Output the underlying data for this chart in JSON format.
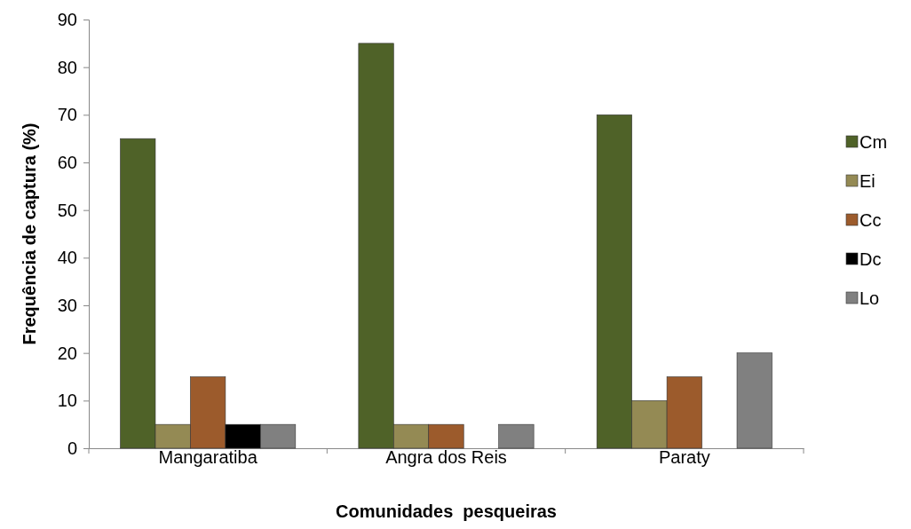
{
  "chart_data": {
    "type": "bar",
    "xlabel": "Comunidades  pesqueiras",
    "ylabel": "Frequência de captura (%)",
    "categories": [
      "Mangaratiba",
      "Angra dos Reis",
      "Paraty"
    ],
    "series": [
      {
        "name": "Cm",
        "color": "#4f6228",
        "values": [
          65,
          85,
          70
        ]
      },
      {
        "name": "Ei",
        "color": "#948a54",
        "values": [
          5,
          5,
          10
        ]
      },
      {
        "name": "Cc",
        "color": "#9c5b2c",
        "values": [
          15,
          5,
          15
        ]
      },
      {
        "name": "Dc",
        "color": "#000000",
        "values": [
          5,
          0,
          0
        ]
      },
      {
        "name": "Lo",
        "color": "#808080",
        "values": [
          5,
          5,
          20
        ]
      }
    ],
    "ylim": [
      0,
      90
    ],
    "yticks": [
      0,
      10,
      20,
      30,
      40,
      50,
      60,
      70,
      80,
      90
    ],
    "grid": false,
    "legend": "right"
  }
}
